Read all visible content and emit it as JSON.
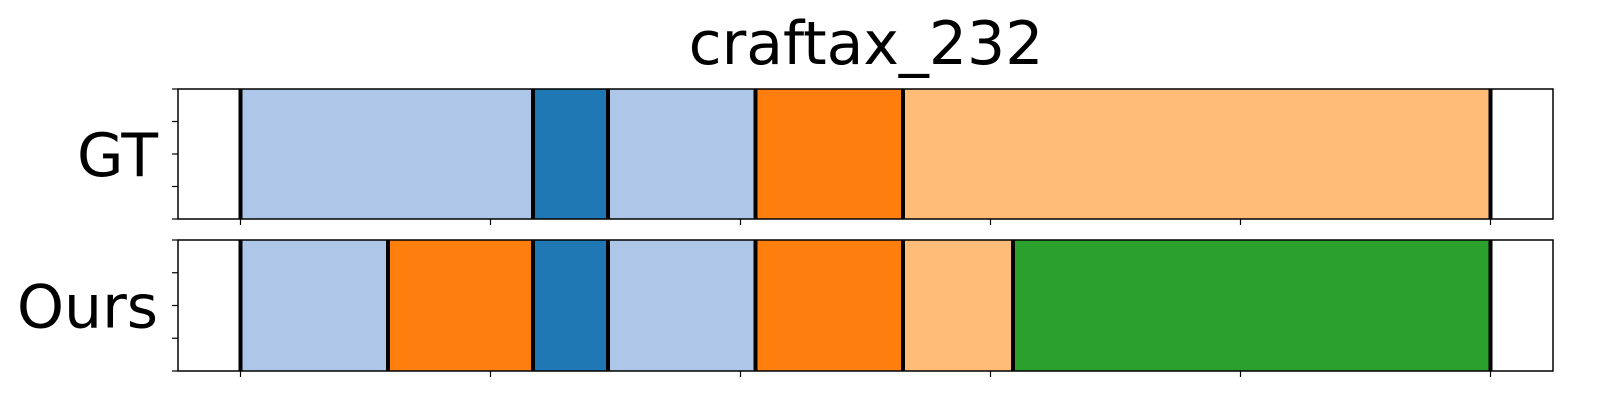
{
  "chart_data": {
    "type": "bar",
    "orientation": "horizontal-segments",
    "title": "craftax_232",
    "xlim": [
      -25,
      525
    ],
    "xticks": [
      0,
      100,
      200,
      300,
      400,
      500
    ],
    "tick_labels_visible": false,
    "grid": false,
    "colors": {
      "light-blue": "#aec7e8",
      "blue": "#1f77b4",
      "orange": "#ff7f0e",
      "light-orange": "#ffbb78",
      "green": "#2ca02c"
    },
    "rows": [
      {
        "label": "GT",
        "segments": [
          {
            "start": 0,
            "end": 117,
            "color": "light-blue"
          },
          {
            "start": 117,
            "end": 147,
            "color": "blue"
          },
          {
            "start": 147,
            "end": 206,
            "color": "light-blue"
          },
          {
            "start": 206,
            "end": 265,
            "color": "orange"
          },
          {
            "start": 265,
            "end": 500,
            "color": "light-orange"
          }
        ]
      },
      {
        "label": "Ours",
        "segments": [
          {
            "start": 0,
            "end": 59,
            "color": "light-blue"
          },
          {
            "start": 59,
            "end": 117,
            "color": "orange"
          },
          {
            "start": 117,
            "end": 147,
            "color": "blue"
          },
          {
            "start": 147,
            "end": 206,
            "color": "light-blue"
          },
          {
            "start": 206,
            "end": 265,
            "color": "orange"
          },
          {
            "start": 265,
            "end": 309,
            "color": "light-orange"
          },
          {
            "start": 309,
            "end": 500,
            "color": "green"
          }
        ]
      }
    ]
  }
}
